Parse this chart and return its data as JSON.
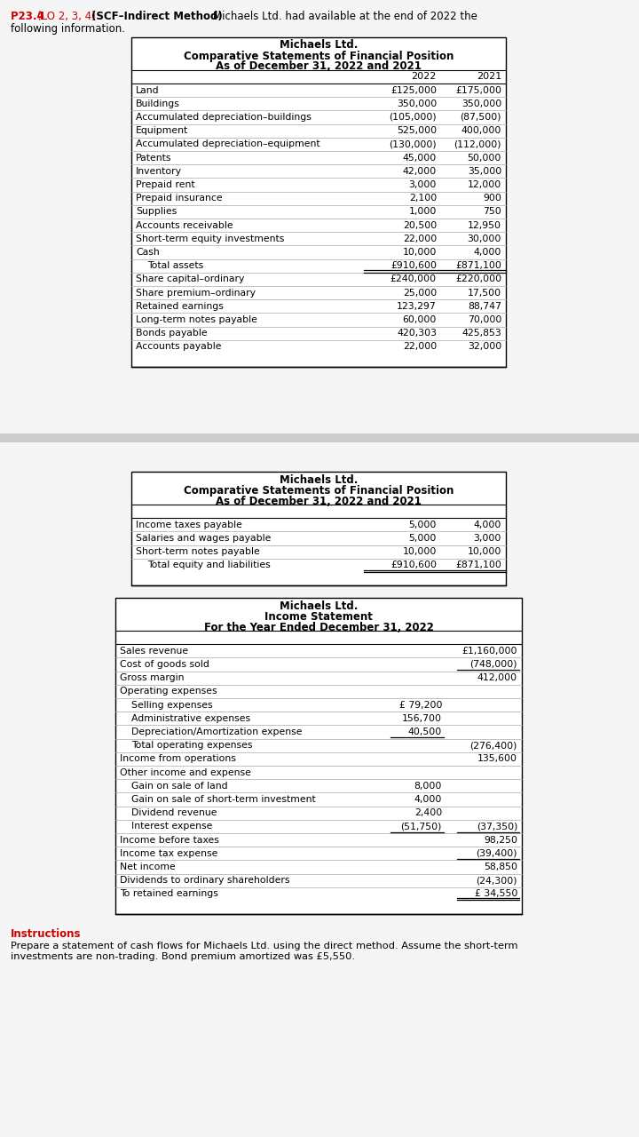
{
  "table1_title1": "Michaels Ltd.",
  "table1_title2": "Comparative Statements of Financial Position",
  "table1_title3": "As of December 31, 2022 and 2021",
  "table1_rows": [
    [
      "Land",
      "£125,000",
      "£175,000"
    ],
    [
      "Buildings",
      "350,000",
      "350,000"
    ],
    [
      "Accumulated depreciation–buildings",
      "(105,000)",
      "(87,500)"
    ],
    [
      "Equipment",
      "525,000",
      "400,000"
    ],
    [
      "Accumulated depreciation–equipment",
      "(130,000)",
      "(112,000)"
    ],
    [
      "Patents",
      "45,000",
      "50,000"
    ],
    [
      "Inventory",
      "42,000",
      "35,000"
    ],
    [
      "Prepaid rent",
      "3,000",
      "12,000"
    ],
    [
      "Prepaid insurance",
      "2,100",
      "900"
    ],
    [
      "Supplies",
      "1,000",
      "750"
    ],
    [
      "Accounts receivable",
      "20,500",
      "12,950"
    ],
    [
      "Short-term equity investments",
      "22,000",
      "30,000"
    ],
    [
      "Cash",
      "10,000",
      "4,000"
    ],
    [
      "  Total assets",
      "£910,600",
      "£871,100"
    ],
    [
      "Share capital–ordinary",
      "£240,000",
      "£220,000"
    ],
    [
      "Share premium–ordinary",
      "25,000",
      "17,500"
    ],
    [
      "Retained earnings",
      "123,297",
      "88,747"
    ],
    [
      "Long-term notes payable",
      "60,000",
      "70,000"
    ],
    [
      "Bonds payable",
      "420,303",
      "425,853"
    ],
    [
      "Accounts payable",
      "22,000",
      "32,000"
    ]
  ],
  "table2_title1": "Michaels Ltd.",
  "table2_title2": "Comparative Statements of Financial Position",
  "table2_title3": "As of December 31, 2022 and 2021",
  "table2_rows": [
    [
      "Income taxes payable",
      "5,000",
      "4,000"
    ],
    [
      "Salaries and wages payable",
      "5,000",
      "3,000"
    ],
    [
      "Short-term notes payable",
      "10,000",
      "10,000"
    ],
    [
      "  Total equity and liabilities",
      "£910,600",
      "£871,100"
    ]
  ],
  "table3_title1": "Michaels Ltd.",
  "table3_title2": "Income Statement",
  "table3_title3": "For the Year Ended December 31, 2022",
  "table3_rows": [
    [
      "Sales revenue",
      "",
      "£1,160,000",
      false,
      false
    ],
    [
      "Cost of goods sold",
      "",
      "(748,000)",
      true,
      false
    ],
    [
      "Gross margin",
      "",
      "412,000",
      false,
      false
    ],
    [
      "Operating expenses",
      "",
      "",
      false,
      false
    ],
    [
      "  Selling expenses",
      "£ 79,200",
      "",
      false,
      false
    ],
    [
      "  Administrative expenses",
      "156,700",
      "",
      false,
      false
    ],
    [
      "  Depreciation/Amortization expense",
      "40,500",
      "",
      true,
      false
    ],
    [
      "  Total operating expenses",
      "",
      "(276,400)",
      false,
      false
    ],
    [
      "Income from operations",
      "",
      "135,600",
      false,
      false
    ],
    [
      "Other income and expense",
      "",
      "",
      false,
      false
    ],
    [
      "  Gain on sale of land",
      "8,000",
      "",
      false,
      false
    ],
    [
      "  Gain on sale of short-term investment",
      "4,000",
      "",
      false,
      false
    ],
    [
      "  Dividend revenue",
      "2,400",
      "",
      false,
      false
    ],
    [
      "  Interest expense",
      "(51,750)",
      "(37,350)",
      true,
      false
    ],
    [
      "Income before taxes",
      "",
      "98,250",
      false,
      false
    ],
    [
      "Income tax expense",
      "",
      "(39,400)",
      true,
      false
    ],
    [
      "Net income",
      "",
      "58,850",
      false,
      false
    ],
    [
      "Dividends to ordinary shareholders",
      "",
      "(24,300)",
      false,
      false
    ],
    [
      "To retained earnings",
      "",
      "£ 34,550",
      false,
      true
    ]
  ],
  "instructions_title": "Instructions",
  "instructions_text": "Prepare a statement of cash flows for Michaels Ltd. using the direct method. Assume the short-term\ninvestments are non-trading. Bond premium amortized was £5,550.",
  "instructions_color": "#cc0000"
}
